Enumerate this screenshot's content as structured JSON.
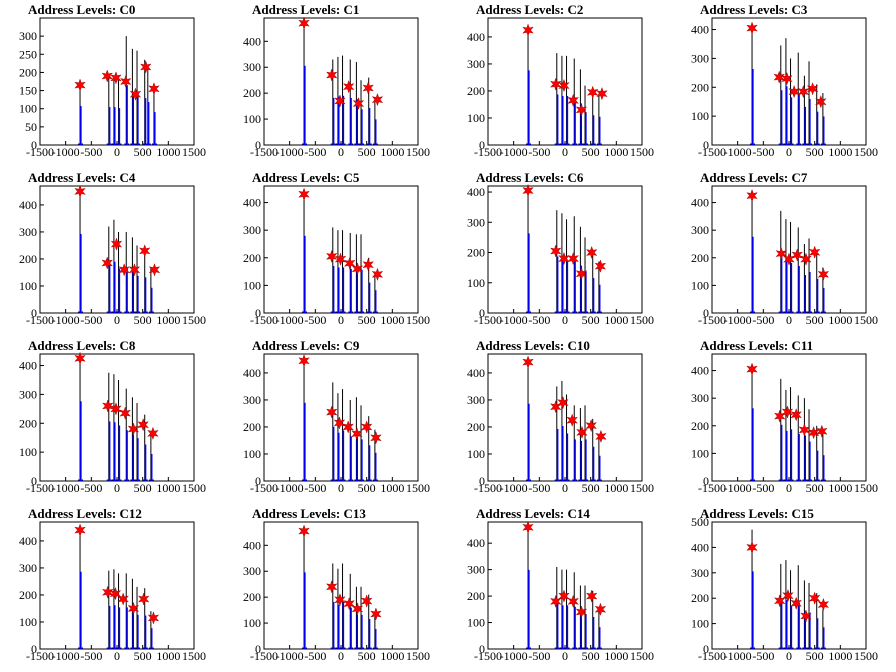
{
  "chart_data": [
    {
      "type": "bar",
      "title": "Address Levels: C0",
      "xlim": [
        -1500,
        1500
      ],
      "ylim": [
        0,
        350
      ],
      "yticks": [
        0,
        50,
        100,
        150,
        200,
        250,
        300
      ],
      "xticks": [
        -1500,
        -1000,
        -500,
        0,
        500,
        1000,
        1500
      ],
      "bins": [
        [
          -720,
          165
        ],
        [
          -160,
          190
        ],
        [
          -60,
          190
        ],
        [
          30,
          185
        ],
        [
          180,
          300
        ],
        [
          300,
          265
        ],
        [
          390,
          260
        ],
        [
          540,
          235
        ],
        [
          600,
          215
        ],
        [
          720,
          165
        ]
      ],
      "peaks": [
        [
          -720,
          165
        ],
        [
          -190,
          190
        ],
        [
          -20,
          185
        ],
        [
          170,
          175
        ],
        [
          360,
          140
        ],
        [
          560,
          215
        ],
        [
          720,
          155
        ]
      ]
    },
    {
      "type": "bar",
      "title": "Address Levels: C1",
      "xlim": [
        -1500,
        1500
      ],
      "ylim": [
        0,
        490
      ],
      "yticks": [
        0,
        100,
        200,
        300,
        400
      ],
      "xticks": [
        -1500,
        -1000,
        -500,
        0,
        500,
        1000,
        1500
      ],
      "bins": [
        [
          -720,
          470
        ],
        [
          -160,
          330
        ],
        [
          -60,
          340
        ],
        [
          30,
          345
        ],
        [
          180,
          330
        ],
        [
          300,
          320
        ],
        [
          390,
          250
        ],
        [
          540,
          260
        ],
        [
          660,
          180
        ]
      ],
      "peaks": [
        [
          -720,
          470
        ],
        [
          -180,
          270
        ],
        [
          -20,
          170
        ],
        [
          150,
          225
        ],
        [
          340,
          160
        ],
        [
          530,
          220
        ],
        [
          710,
          175
        ]
      ]
    },
    {
      "type": "bar",
      "title": "Address Levels: C2",
      "xlim": [
        -1500,
        1500
      ],
      "ylim": [
        0,
        470
      ],
      "yticks": [
        0,
        100,
        200,
        300,
        400
      ],
      "xticks": [
        -1500,
        -1000,
        -500,
        0,
        500,
        1000,
        1500
      ],
      "bins": [
        [
          -720,
          425
        ],
        [
          -160,
          340
        ],
        [
          -60,
          330
        ],
        [
          30,
          330
        ],
        [
          180,
          320
        ],
        [
          300,
          280
        ],
        [
          390,
          220
        ],
        [
          540,
          200
        ],
        [
          660,
          190
        ]
      ],
      "peaks": [
        [
          -720,
          425
        ],
        [
          -180,
          225
        ],
        [
          -20,
          220
        ],
        [
          160,
          165
        ],
        [
          320,
          130
        ],
        [
          540,
          195
        ],
        [
          720,
          190
        ]
      ]
    },
    {
      "type": "bar",
      "title": "Address Levels: C3",
      "xlim": [
        -1500,
        1500
      ],
      "ylim": [
        0,
        440
      ],
      "yticks": [
        0,
        100,
        200,
        300,
        400
      ],
      "xticks": [
        -1500,
        -1000,
        -500,
        0,
        500,
        1000,
        1500
      ],
      "bins": [
        [
          -720,
          405
        ],
        [
          -160,
          345
        ],
        [
          -60,
          370
        ],
        [
          30,
          300
        ],
        [
          180,
          320
        ],
        [
          300,
          240
        ],
        [
          390,
          290
        ],
        [
          540,
          210
        ],
        [
          660,
          180
        ]
      ],
      "peaks": [
        [
          -720,
          405
        ],
        [
          -190,
          235
        ],
        [
          -40,
          230
        ],
        [
          100,
          185
        ],
        [
          280,
          185
        ],
        [
          460,
          195
        ],
        [
          620,
          150
        ]
      ]
    },
    {
      "type": "bar",
      "title": "Address Levels: C4",
      "xlim": [
        -1500,
        1500
      ],
      "ylim": [
        0,
        470
      ],
      "yticks": [
        0,
        100,
        200,
        300,
        400
      ],
      "xticks": [
        -1500,
        -1000,
        -500,
        0,
        500,
        1000,
        1500
      ],
      "bins": [
        [
          -720,
          450
        ],
        [
          -160,
          320
        ],
        [
          -60,
          345
        ],
        [
          30,
          300
        ],
        [
          180,
          300
        ],
        [
          300,
          280
        ],
        [
          390,
          250
        ],
        [
          540,
          240
        ],
        [
          660,
          170
        ]
      ],
      "peaks": [
        [
          -720,
          450
        ],
        [
          -190,
          185
        ],
        [
          -10,
          255
        ],
        [
          140,
          160
        ],
        [
          340,
          160
        ],
        [
          540,
          230
        ],
        [
          730,
          160
        ]
      ]
    },
    {
      "type": "bar",
      "title": "Address Levels: C5",
      "xlim": [
        -1500,
        1500
      ],
      "ylim": [
        0,
        460
      ],
      "yticks": [
        0,
        100,
        200,
        300,
        400
      ],
      "xticks": [
        -1500,
        -1000,
        -500,
        0,
        500,
        1000,
        1500
      ],
      "bins": [
        [
          -720,
          430
        ],
        [
          -160,
          310
        ],
        [
          -60,
          300
        ],
        [
          30,
          300
        ],
        [
          180,
          290
        ],
        [
          300,
          285
        ],
        [
          390,
          285
        ],
        [
          540,
          200
        ],
        [
          660,
          150
        ]
      ],
      "peaks": [
        [
          -720,
          430
        ],
        [
          -180,
          205
        ],
        [
          -10,
          195
        ],
        [
          170,
          180
        ],
        [
          320,
          160
        ],
        [
          530,
          175
        ],
        [
          710,
          140
        ]
      ]
    },
    {
      "type": "bar",
      "title": "Address Levels: C6",
      "xlim": [
        -1500,
        1500
      ],
      "ylim": [
        0,
        420
      ],
      "yticks": [
        0,
        100,
        200,
        300,
        400
      ],
      "xticks": [
        -1500,
        -1000,
        -500,
        0,
        500,
        1000,
        1500
      ],
      "bins": [
        [
          -720,
          405
        ],
        [
          -160,
          340
        ],
        [
          -60,
          330
        ],
        [
          30,
          310
        ],
        [
          180,
          320
        ],
        [
          300,
          285
        ],
        [
          390,
          250
        ],
        [
          540,
          210
        ],
        [
          660,
          170
        ]
      ],
      "peaks": [
        [
          -720,
          405
        ],
        [
          -180,
          205
        ],
        [
          -20,
          180
        ],
        [
          160,
          180
        ],
        [
          320,
          130
        ],
        [
          520,
          200
        ],
        [
          690,
          155
        ]
      ]
    },
    {
      "type": "bar",
      "title": "Address Levels: C7",
      "xlim": [
        -1500,
        1500
      ],
      "ylim": [
        0,
        460
      ],
      "yticks": [
        0,
        100,
        200,
        300,
        400
      ],
      "xticks": [
        -1500,
        -1000,
        -500,
        0,
        500,
        1000,
        1500
      ],
      "bins": [
        [
          -720,
          425
        ],
        [
          -160,
          370
        ],
        [
          -60,
          340
        ],
        [
          30,
          330
        ],
        [
          180,
          310
        ],
        [
          300,
          250
        ],
        [
          390,
          270
        ],
        [
          540,
          225
        ],
        [
          660,
          165
        ]
      ],
      "peaks": [
        [
          -720,
          425
        ],
        [
          -150,
          215
        ],
        [
          0,
          195
        ],
        [
          160,
          210
        ],
        [
          330,
          195
        ],
        [
          500,
          220
        ],
        [
          670,
          140
        ]
      ]
    },
    {
      "type": "bar",
      "title": "Address Levels: C8",
      "xlim": [
        -1500,
        1500
      ],
      "ylim": [
        0,
        440
      ],
      "yticks": [
        0,
        100,
        200,
        300,
        400
      ],
      "xticks": [
        -1500,
        -1000,
        -500,
        0,
        500,
        1000,
        1500
      ],
      "bins": [
        [
          -720,
          425
        ],
        [
          -160,
          375
        ],
        [
          -60,
          370
        ],
        [
          30,
          350
        ],
        [
          180,
          320
        ],
        [
          300,
          290
        ],
        [
          390,
          270
        ],
        [
          540,
          230
        ],
        [
          660,
          170
        ]
      ],
      "peaks": [
        [
          -720,
          425
        ],
        [
          -180,
          260
        ],
        [
          -20,
          250
        ],
        [
          160,
          235
        ],
        [
          320,
          180
        ],
        [
          510,
          195
        ],
        [
          700,
          165
        ]
      ]
    },
    {
      "type": "bar",
      "title": "Address Levels: C9",
      "xlim": [
        -1500,
        1500
      ],
      "ylim": [
        0,
        470
      ],
      "yticks": [
        0,
        100,
        200,
        300,
        400
      ],
      "xticks": [
        -1500,
        -1000,
        -500,
        0,
        500,
        1000,
        1500
      ],
      "bins": [
        [
          -720,
          445
        ],
        [
          -160,
          365
        ],
        [
          -60,
          325
        ],
        [
          30,
          340
        ],
        [
          180,
          300
        ],
        [
          300,
          310
        ],
        [
          390,
          280
        ],
        [
          540,
          240
        ],
        [
          660,
          190
        ]
      ],
      "peaks": [
        [
          -720,
          445
        ],
        [
          -180,
          255
        ],
        [
          -30,
          215
        ],
        [
          140,
          200
        ],
        [
          310,
          175
        ],
        [
          500,
          200
        ],
        [
          680,
          160
        ]
      ]
    },
    {
      "type": "bar",
      "title": "Address Levels: C10",
      "xlim": [
        -1500,
        1500
      ],
      "ylim": [
        0,
        470
      ],
      "yticks": [
        0,
        100,
        200,
        300,
        400
      ],
      "xticks": [
        -1500,
        -1000,
        -500,
        0,
        500,
        1000,
        1500
      ],
      "bins": [
        [
          -720,
          440
        ],
        [
          -160,
          350
        ],
        [
          -60,
          370
        ],
        [
          30,
          320
        ],
        [
          180,
          280
        ],
        [
          300,
          270
        ],
        [
          390,
          280
        ],
        [
          540,
          230
        ],
        [
          660,
          170
        ]
      ],
      "peaks": [
        [
          -720,
          440
        ],
        [
          -180,
          275
        ],
        [
          -40,
          290
        ],
        [
          140,
          225
        ],
        [
          330,
          180
        ],
        [
          510,
          205
        ],
        [
          700,
          165
        ]
      ]
    },
    {
      "type": "bar",
      "title": "Address Levels: C11",
      "xlim": [
        -1500,
        1500
      ],
      "ylim": [
        0,
        460
      ],
      "yticks": [
        0,
        100,
        200,
        300,
        400
      ],
      "xticks": [
        -1500,
        -1000,
        -500,
        0,
        500,
        1000,
        1500
      ],
      "bins": [
        [
          -720,
          405
        ],
        [
          -160,
          370
        ],
        [
          -60,
          330
        ],
        [
          30,
          340
        ],
        [
          180,
          310
        ],
        [
          300,
          300
        ],
        [
          390,
          260
        ],
        [
          540,
          200
        ],
        [
          660,
          170
        ]
      ],
      "peaks": [
        [
          -720,
          405
        ],
        [
          -180,
          235
        ],
        [
          -30,
          250
        ],
        [
          140,
          240
        ],
        [
          300,
          185
        ],
        [
          480,
          175
        ],
        [
          640,
          180
        ]
      ]
    },
    {
      "type": "bar",
      "title": "Address Levels: C12",
      "xlim": [
        -1500,
        1500
      ],
      "ylim": [
        0,
        470
      ],
      "yticks": [
        0,
        100,
        200,
        300,
        400
      ],
      "xticks": [
        -1500,
        -1000,
        -500,
        0,
        500,
        1000,
        1500
      ],
      "bins": [
        [
          -720,
          440
        ],
        [
          -160,
          290
        ],
        [
          -60,
          295
        ],
        [
          30,
          280
        ],
        [
          180,
          280
        ],
        [
          300,
          260
        ],
        [
          390,
          230
        ],
        [
          540,
          225
        ],
        [
          660,
          140
        ]
      ],
      "peaks": [
        [
          -720,
          440
        ],
        [
          -180,
          210
        ],
        [
          -30,
          205
        ],
        [
          120,
          185
        ],
        [
          320,
          150
        ],
        [
          520,
          185
        ],
        [
          710,
          115
        ]
      ]
    },
    {
      "type": "bar",
      "title": "Address Levels: C13",
      "xlim": [
        -1500,
        1500
      ],
      "ylim": [
        0,
        490
      ],
      "yticks": [
        0,
        100,
        200,
        300,
        400
      ],
      "xticks": [
        -1500,
        -1000,
        -500,
        0,
        500,
        1000,
        1500
      ],
      "bins": [
        [
          -720,
          455
        ],
        [
          -160,
          330
        ],
        [
          -60,
          310
        ],
        [
          30,
          330
        ],
        [
          180,
          290
        ],
        [
          300,
          240
        ],
        [
          390,
          240
        ],
        [
          540,
          210
        ],
        [
          660,
          140
        ]
      ],
      "peaks": [
        [
          -720,
          455
        ],
        [
          -180,
          240
        ],
        [
          -20,
          190
        ],
        [
          160,
          175
        ],
        [
          320,
          155
        ],
        [
          500,
          185
        ],
        [
          680,
          135
        ]
      ]
    },
    {
      "type": "bar",
      "title": "Address Levels: C14",
      "xlim": [
        -1500,
        1500
      ],
      "ylim": [
        0,
        480
      ],
      "yticks": [
        0,
        100,
        200,
        300,
        400
      ],
      "xticks": [
        -1500,
        -1000,
        -500,
        0,
        500,
        1000,
        1500
      ],
      "bins": [
        [
          -720,
          460
        ],
        [
          -160,
          310
        ],
        [
          -60,
          300
        ],
        [
          30,
          300
        ],
        [
          180,
          290
        ],
        [
          300,
          240
        ],
        [
          390,
          240
        ],
        [
          540,
          220
        ],
        [
          660,
          150
        ]
      ],
      "peaks": [
        [
          -720,
          460
        ],
        [
          -180,
          180
        ],
        [
          -20,
          200
        ],
        [
          160,
          180
        ],
        [
          320,
          140
        ],
        [
          520,
          200
        ],
        [
          690,
          150
        ]
      ]
    },
    {
      "type": "bar",
      "title": "Address Levels: C15",
      "xlim": [
        -1500,
        1500
      ],
      "ylim": [
        0,
        500
      ],
      "yticks": [
        0,
        100,
        200,
        300,
        400,
        500
      ],
      "xticks": [
        -1500,
        -1000,
        -500,
        0,
        500,
        1000,
        1500
      ],
      "bins": [
        [
          -720,
          470
        ],
        [
          -160,
          335
        ],
        [
          -60,
          350
        ],
        [
          30,
          310
        ],
        [
          180,
          330
        ],
        [
          300,
          270
        ],
        [
          390,
          260
        ],
        [
          540,
          220
        ],
        [
          660,
          155
        ]
      ],
      "peaks": [
        [
          -720,
          400
        ],
        [
          -180,
          190
        ],
        [
          -20,
          210
        ],
        [
          140,
          180
        ],
        [
          330,
          130
        ],
        [
          500,
          200
        ],
        [
          670,
          175
        ]
      ]
    }
  ],
  "colors": {
    "bars": "#0000ff",
    "dark_bars": "#000000",
    "markers": "#ff0000",
    "axes": "#000000"
  }
}
